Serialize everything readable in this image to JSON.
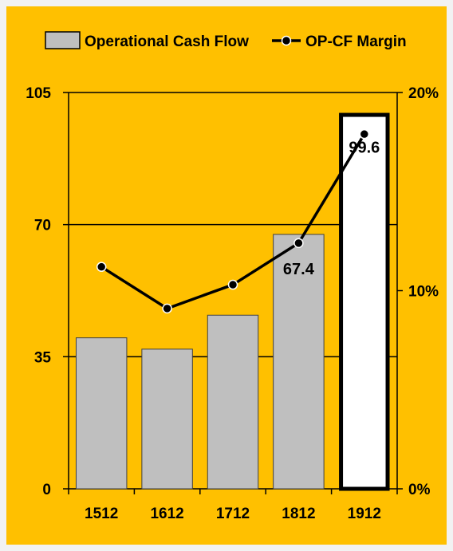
{
  "chart_data": {
    "type": "bar",
    "categories": [
      "1512",
      "1612",
      "1712",
      "1812",
      "1912"
    ],
    "series": [
      {
        "name": "Operational Cash Flow",
        "type": "bar",
        "axis": "left",
        "values": [
          40,
          37,
          46,
          67.4,
          99.6
        ],
        "data_labels": [
          "",
          "",
          "",
          "67.4",
          "99.6"
        ],
        "color": "#bfbfbf",
        "highlight_color": "#ffffff"
      },
      {
        "name": "OP-CF Margin",
        "type": "line",
        "axis": "right",
        "values": [
          11.2,
          9.1,
          10.3,
          12.4,
          17.9
        ],
        "color": "#000000"
      }
    ],
    "y_left": {
      "ylim": [
        0,
        105
      ],
      "ticks": [
        0,
        35,
        70,
        105
      ]
    },
    "y_right": {
      "ylim": [
        0,
        20
      ],
      "ticks": [
        "0%",
        "10%",
        "20%"
      ]
    },
    "legend": "top",
    "grid": true,
    "background_color": "#ffc000"
  }
}
